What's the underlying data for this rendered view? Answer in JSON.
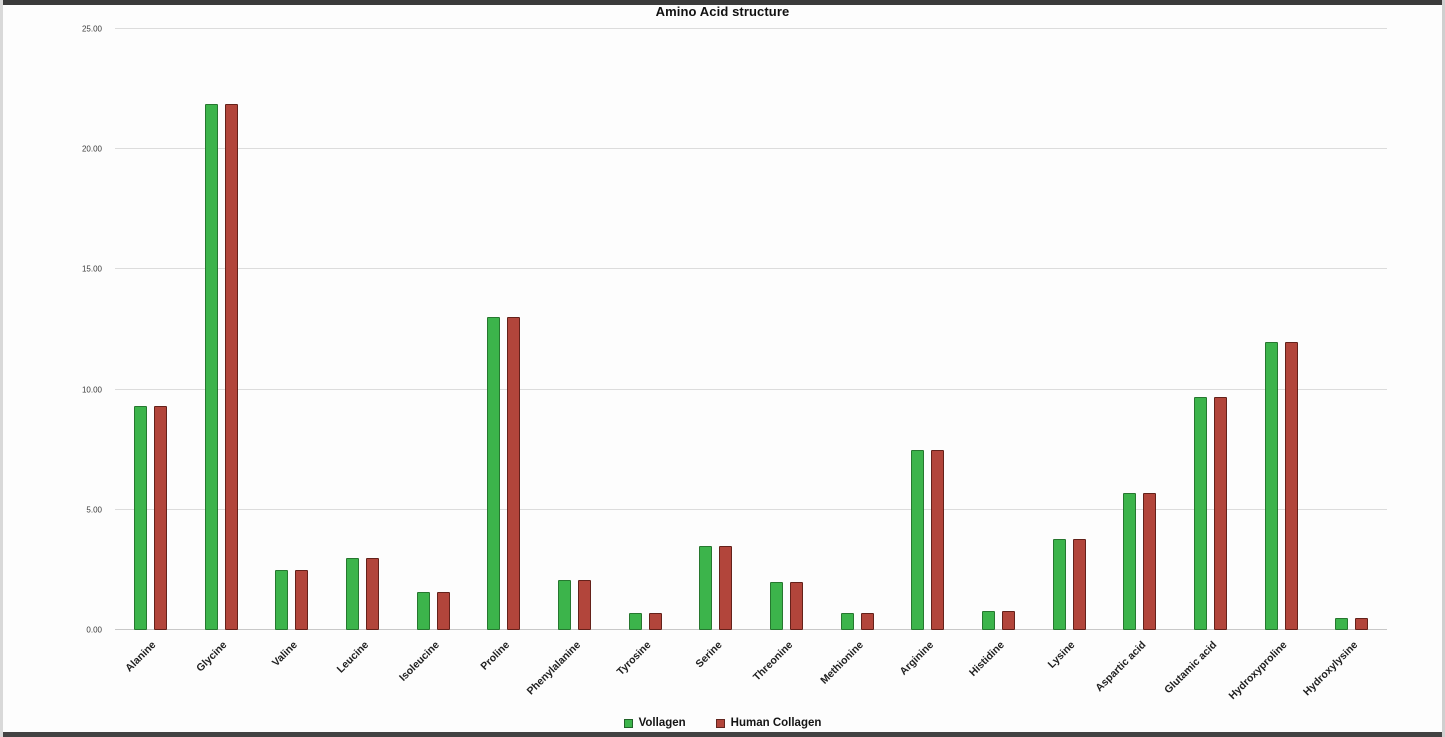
{
  "chart_data": {
    "type": "bar",
    "title": "Amino Acid structure",
    "categories": [
      "Alanine",
      "Glycine",
      "Valine",
      "Leucine",
      "Isoleucine",
      "Proline",
      "Phenylalanine",
      "Tyrosine",
      "Serine",
      "Threonine",
      "Methionine",
      "Arginine",
      "Histidine",
      "Lysine",
      "Aspartic acid",
      "Glutamic acid",
      "Hydroxyproline",
      "Hydroxylysine"
    ],
    "series": [
      {
        "name": "Vollagen",
        "fill": "#3cb44b",
        "border": "#26772f",
        "values": [
          9.3,
          21.9,
          2.5,
          3.0,
          1.6,
          13.0,
          2.1,
          0.7,
          3.5,
          2.0,
          0.7,
          7.5,
          0.8,
          3.8,
          5.7,
          9.7,
          12.0,
          0.5
        ]
      },
      {
        "name": "Human Collagen",
        "fill": "#b2453b",
        "border": "#64211a",
        "values": [
          9.3,
          21.9,
          2.5,
          3.0,
          1.6,
          13.0,
          2.1,
          0.7,
          3.5,
          2.0,
          0.7,
          7.5,
          0.8,
          3.8,
          5.7,
          9.7,
          12.0,
          0.5
        ]
      }
    ],
    "ylim": [
      0,
      25
    ],
    "ytick_step": 5,
    "ytick_decimals": 2,
    "xlabel": "",
    "ylabel": "",
    "grid": true,
    "legend_position": "bottom"
  }
}
